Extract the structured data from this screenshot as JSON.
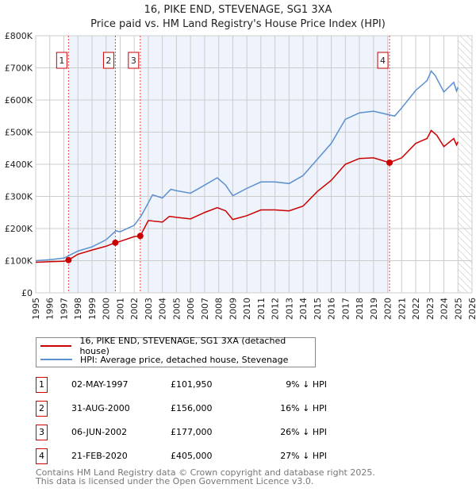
{
  "chart_data": {
    "type": "line",
    "title": "16, PIKE END, STEVENAGE, SG1 3XA",
    "subtitle": "Price paid vs. HM Land Registry's House Price Index (HPI)",
    "xlim": [
      1995,
      2026
    ],
    "ylim": [
      0,
      800000
    ],
    "x_ticks": [
      "1995",
      "1996",
      "1997",
      "1998",
      "1999",
      "2000",
      "2001",
      "2002",
      "2003",
      "2004",
      "2005",
      "2006",
      "2007",
      "2008",
      "2009",
      "2010",
      "2011",
      "2012",
      "2013",
      "2014",
      "2015",
      "2016",
      "2017",
      "2018",
      "2019",
      "2020",
      "2021",
      "2022",
      "2023",
      "2024",
      "2025",
      "2026"
    ],
    "y_ticks": [
      {
        "v": 0,
        "label": "£0"
      },
      {
        "v": 100000,
        "label": "£100K"
      },
      {
        "v": 200000,
        "label": "£200K"
      },
      {
        "v": 300000,
        "label": "£300K"
      },
      {
        "v": 400000,
        "label": "£400K"
      },
      {
        "v": 500000,
        "label": "£500K"
      },
      {
        "v": 600000,
        "label": "£600K"
      },
      {
        "v": 700000,
        "label": "£700K"
      },
      {
        "v": 800000,
        "label": "£800K"
      }
    ],
    "grid": true,
    "series": [
      {
        "name": "16, PIKE END, STEVENAGE, SG1 3XA (detached house)",
        "color": "#cc0000",
        "points": [
          [
            1995,
            95
          ],
          [
            1996,
            97
          ],
          [
            1997,
            98
          ],
          [
            1997.33,
            102
          ],
          [
            1998,
            120
          ],
          [
            1999,
            133
          ],
          [
            2000,
            145
          ],
          [
            2000.66,
            156
          ],
          [
            2001,
            160
          ],
          [
            2002,
            175
          ],
          [
            2002.43,
            177
          ],
          [
            2003,
            225
          ],
          [
            2004,
            220
          ],
          [
            2004.5,
            238
          ],
          [
            2005,
            235
          ],
          [
            2006,
            230
          ],
          [
            2007,
            250
          ],
          [
            2007.9,
            265
          ],
          [
            2008.5,
            255
          ],
          [
            2009,
            228
          ],
          [
            2010,
            240
          ],
          [
            2011,
            258
          ],
          [
            2012,
            258
          ],
          [
            2013,
            255
          ],
          [
            2014,
            270
          ],
          [
            2015,
            315
          ],
          [
            2016,
            350
          ],
          [
            2017,
            400
          ],
          [
            2018,
            418
          ],
          [
            2019,
            420
          ],
          [
            2020.14,
            405
          ],
          [
            2021,
            420
          ],
          [
            2022,
            465
          ],
          [
            2022.8,
            480
          ],
          [
            2023.1,
            505
          ],
          [
            2023.5,
            490
          ],
          [
            2024,
            455
          ],
          [
            2024.7,
            480
          ],
          [
            2024.9,
            460
          ],
          [
            2025,
            470
          ]
        ]
      },
      {
        "name": "HPI: Average price, detached house, Stevenage",
        "color": "#5b8fd0",
        "points": [
          [
            1995,
            100
          ],
          [
            1996,
            103
          ],
          [
            1997,
            108
          ],
          [
            1998,
            130
          ],
          [
            1999,
            143
          ],
          [
            2000,
            165
          ],
          [
            2000.7,
            193
          ],
          [
            2001,
            190
          ],
          [
            2002,
            210
          ],
          [
            2002.5,
            240
          ],
          [
            2003,
            280
          ],
          [
            2003.3,
            305
          ],
          [
            2004,
            295
          ],
          [
            2004.6,
            322
          ],
          [
            2005,
            318
          ],
          [
            2006,
            310
          ],
          [
            2007,
            335
          ],
          [
            2007.9,
            358
          ],
          [
            2008.5,
            335
          ],
          [
            2009,
            302
          ],
          [
            2010,
            325
          ],
          [
            2011,
            345
          ],
          [
            2012,
            345
          ],
          [
            2013,
            340
          ],
          [
            2014,
            365
          ],
          [
            2015,
            415
          ],
          [
            2016,
            465
          ],
          [
            2017,
            540
          ],
          [
            2018,
            560
          ],
          [
            2019,
            565
          ],
          [
            2020,
            555
          ],
          [
            2020.5,
            550
          ],
          [
            2021,
            575
          ],
          [
            2022,
            630
          ],
          [
            2022.8,
            660
          ],
          [
            2023.1,
            690
          ],
          [
            2023.4,
            675
          ],
          [
            2024,
            625
          ],
          [
            2024.7,
            655
          ],
          [
            2024.9,
            628
          ],
          [
            2025,
            640
          ]
        ]
      }
    ],
    "sales": [
      {
        "id": "1",
        "x": 1997.33,
        "price": 101950,
        "date": "02-MAY-1997",
        "price_label": "£101,950",
        "hpi_diff": "9% ↓ HPI"
      },
      {
        "id": "2",
        "x": 2000.66,
        "price": 156000,
        "date": "31-AUG-2000",
        "price_label": "£156,000",
        "hpi_diff": "16% ↓ HPI"
      },
      {
        "id": "3",
        "x": 2002.43,
        "price": 177000,
        "date": "06-JUN-2002",
        "price_label": "£177,000",
        "hpi_diff": "26% ↓ HPI"
      },
      {
        "id": "4",
        "x": 2020.14,
        "price": 405000,
        "date": "21-FEB-2020",
        "price_label": "£405,000",
        "hpi_diff": "27% ↓ HPI"
      }
    ],
    "shaded_spans": [
      [
        1997.33,
        2000.66
      ],
      [
        2002.43,
        2020.14
      ]
    ],
    "forecast_hatch_from": 2025
  },
  "legend": {
    "red": "16, PIKE END, STEVENAGE, SG1 3XA (detached house)",
    "blue": "HPI: Average price, detached house, Stevenage"
  },
  "footer": {
    "line1": "Contains HM Land Registry data © Crown copyright and database right 2025.",
    "line2": "This data is licensed under the Open Government Licence v3.0."
  }
}
